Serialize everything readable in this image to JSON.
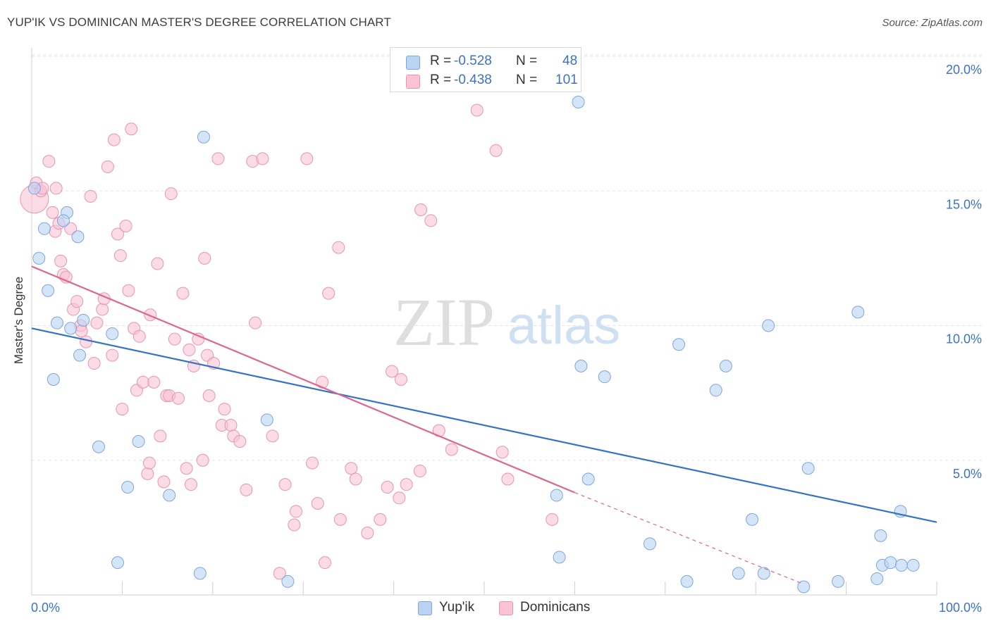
{
  "title": "YUP'IK VS DOMINICAN MASTER'S DEGREE CORRELATION CHART",
  "source": "Source: ZipAtlas.com",
  "watermark": {
    "zip": "ZIP",
    "atlas": "atlas"
  },
  "legend_top": {
    "rows": [
      {
        "r_label": "R =",
        "r_value": "-0.528",
        "n_label": "N =",
        "n_value": "48"
      },
      {
        "r_label": "R =",
        "r_value": "-0.438",
        "n_label": "N =",
        "n_value": "101"
      }
    ]
  },
  "legend_bottom": {
    "items": [
      "Yup'ik",
      "Dominicans"
    ]
  },
  "colors": {
    "yupik_fill": "#b9d3f3",
    "yupik_stroke": "#7ea6dd",
    "yupik_line": "#3272c9",
    "dom_fill": "#f9c3d3",
    "dom_stroke": "#e995b0",
    "dom_line": "#e0648e",
    "axis_text": "#3b72c6",
    "grid": "#e3e3e3"
  },
  "chart_data": {
    "type": "scatter",
    "title": "YUP'IK VS DOMINICAN MASTER'S DEGREE CORRELATION CHART",
    "xlabel": "",
    "ylabel": "Master's Degree",
    "xlim": [
      0,
      100
    ],
    "ylim": [
      0,
      20.5
    ],
    "x_tick_labels": [
      {
        "value": 0,
        "label": "0.0%"
      },
      {
        "value": 100,
        "label": "100.0%"
      }
    ],
    "y_ticks": [
      {
        "value": 5,
        "label": "5.0%"
      },
      {
        "value": 10,
        "label": "10.0%"
      },
      {
        "value": 15,
        "label": "15.0%"
      },
      {
        "value": 20,
        "label": "20.0%"
      }
    ],
    "x_minor_ticks": [
      10,
      20,
      30,
      40,
      50,
      60,
      70,
      80,
      90,
      100
    ],
    "grid": true,
    "legend_position": "top-center",
    "series": [
      {
        "name": "Yup'ik",
        "r": -0.528,
        "n": 48,
        "trend": {
          "x": [
            0,
            100
          ],
          "y": [
            9.9,
            2.7
          ],
          "dashed_to": null
        },
        "points": [
          [
            0.3,
            15.1
          ],
          [
            1.4,
            13.6
          ],
          [
            0.8,
            12.5
          ],
          [
            1.8,
            11.3
          ],
          [
            3.9,
            14.2
          ],
          [
            3.5,
            13.9
          ],
          [
            5.1,
            13.3
          ],
          [
            2.8,
            10.1
          ],
          [
            4.3,
            9.9
          ],
          [
            5.7,
            10.2
          ],
          [
            8.9,
            9.7
          ],
          [
            5.3,
            8.9
          ],
          [
            2.4,
            8.0
          ],
          [
            7.4,
            5.5
          ],
          [
            11.8,
            5.7
          ],
          [
            10.6,
            4.0
          ],
          [
            15.2,
            3.7
          ],
          [
            9.5,
            1.2
          ],
          [
            18.6,
            0.8
          ],
          [
            19.0,
            17.0
          ],
          [
            26.0,
            6.5
          ],
          [
            28.3,
            0.5
          ],
          [
            60.4,
            18.3
          ],
          [
            58.0,
            3.7
          ],
          [
            58.3,
            1.4
          ],
          [
            60.7,
            8.5
          ],
          [
            61.5,
            4.3
          ],
          [
            63.3,
            8.1
          ],
          [
            68.3,
            1.9
          ],
          [
            71.5,
            9.3
          ],
          [
            72.4,
            0.5
          ],
          [
            75.6,
            7.6
          ],
          [
            76.7,
            8.5
          ],
          [
            78.1,
            0.8
          ],
          [
            79.6,
            2.8
          ],
          [
            80.9,
            0.8
          ],
          [
            81.4,
            10.0
          ],
          [
            85.3,
            0.3
          ],
          [
            85.8,
            4.7
          ],
          [
            89.1,
            0.5
          ],
          [
            91.3,
            10.5
          ],
          [
            93.4,
            0.6
          ],
          [
            93.8,
            2.2
          ],
          [
            94.0,
            1.1
          ],
          [
            94.9,
            1.2
          ],
          [
            96.0,
            3.1
          ],
          [
            96.1,
            1.1
          ],
          [
            97.4,
            1.1
          ]
        ]
      },
      {
        "name": "Dominicans",
        "r": -0.438,
        "n": 101,
        "trend": {
          "x": [
            0,
            60
          ],
          "y": [
            12.2,
            3.8
          ],
          "dashed_to": [
            85.3,
            0.4
          ]
        },
        "points": [
          [
            0.3,
            14.7
          ],
          [
            0.5,
            15.3
          ],
          [
            1.0,
            15.0
          ],
          [
            1.2,
            15.1
          ],
          [
            1.9,
            16.1
          ],
          [
            2.3,
            14.2
          ],
          [
            2.6,
            13.5
          ],
          [
            3.0,
            13.8
          ],
          [
            3.2,
            12.4
          ],
          [
            3.5,
            11.9
          ],
          [
            3.8,
            11.8
          ],
          [
            4.3,
            13.6
          ],
          [
            4.6,
            10.6
          ],
          [
            5.0,
            10.9
          ],
          [
            5.4,
            10.0
          ],
          [
            5.5,
            9.8
          ],
          [
            6.0,
            9.4
          ],
          [
            6.5,
            14.8
          ],
          [
            6.9,
            8.6
          ],
          [
            7.2,
            10.1
          ],
          [
            7.8,
            10.6
          ],
          [
            8.0,
            11.0
          ],
          [
            8.4,
            15.9
          ],
          [
            8.9,
            8.9
          ],
          [
            9.1,
            16.9
          ],
          [
            9.5,
            13.4
          ],
          [
            9.8,
            12.6
          ],
          [
            10.0,
            6.9
          ],
          [
            10.4,
            13.7
          ],
          [
            10.7,
            11.3
          ],
          [
            11.0,
            17.3
          ],
          [
            11.3,
            9.9
          ],
          [
            11.6,
            7.6
          ],
          [
            11.9,
            9.6
          ],
          [
            12.3,
            7.9
          ],
          [
            12.8,
            4.5
          ],
          [
            13.0,
            4.9
          ],
          [
            13.1,
            10.4
          ],
          [
            13.5,
            7.9
          ],
          [
            13.9,
            12.3
          ],
          [
            14.2,
            5.9
          ],
          [
            14.6,
            4.2
          ],
          [
            14.9,
            7.4
          ],
          [
            15.2,
            7.4
          ],
          [
            15.4,
            14.9
          ],
          [
            15.8,
            9.5
          ],
          [
            16.2,
            7.3
          ],
          [
            16.7,
            11.2
          ],
          [
            17.1,
            4.7
          ],
          [
            17.4,
            9.1
          ],
          [
            17.6,
            4.1
          ],
          [
            17.9,
            8.5
          ],
          [
            18.4,
            9.5
          ],
          [
            18.9,
            5.0
          ],
          [
            19.1,
            12.5
          ],
          [
            19.4,
            8.9
          ],
          [
            19.6,
            7.4
          ],
          [
            20.1,
            8.6
          ],
          [
            20.6,
            16.2
          ],
          [
            21.0,
            6.3
          ],
          [
            21.3,
            6.9
          ],
          [
            22.0,
            6.3
          ],
          [
            22.3,
            5.9
          ],
          [
            23.0,
            5.7
          ],
          [
            23.7,
            3.9
          ],
          [
            24.4,
            16.1
          ],
          [
            24.7,
            10.1
          ],
          [
            25.5,
            16.2
          ],
          [
            26.6,
            5.9
          ],
          [
            27.4,
            0.8
          ],
          [
            28.0,
            4.1
          ],
          [
            29.0,
            2.6
          ],
          [
            29.2,
            3.1
          ],
          [
            30.4,
            16.2
          ],
          [
            31.0,
            4.9
          ],
          [
            31.6,
            3.4
          ],
          [
            32.1,
            7.9
          ],
          [
            32.4,
            1.2
          ],
          [
            32.8,
            11.2
          ],
          [
            33.9,
            12.9
          ],
          [
            34.1,
            2.8
          ],
          [
            35.3,
            4.7
          ],
          [
            35.8,
            4.3
          ],
          [
            37.1,
            2.3
          ],
          [
            38.5,
            2.8
          ],
          [
            39.3,
            4.0
          ],
          [
            39.8,
            8.3
          ],
          [
            40.8,
            8.0
          ],
          [
            40.6,
            3.6
          ],
          [
            41.4,
            4.1
          ],
          [
            42.9,
            4.6
          ],
          [
            43.0,
            14.3
          ],
          [
            44.1,
            13.9
          ],
          [
            45.0,
            6.1
          ],
          [
            46.4,
            5.4
          ],
          [
            49.2,
            18.0
          ],
          [
            51.3,
            16.5
          ],
          [
            52.0,
            5.3
          ],
          [
            52.6,
            4.3
          ],
          [
            57.5,
            2.8
          ],
          [
            2.7,
            15.1
          ]
        ]
      }
    ]
  }
}
